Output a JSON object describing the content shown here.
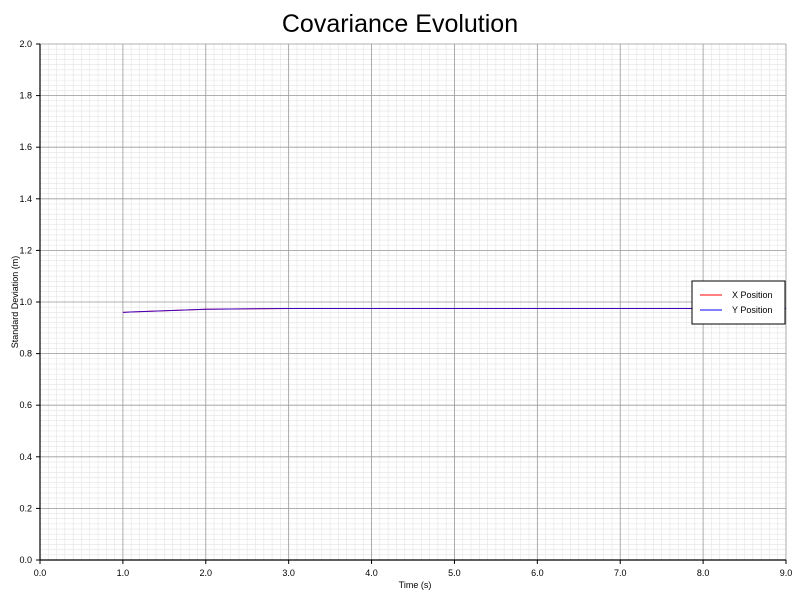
{
  "chart_data": {
    "type": "line",
    "title": "Covariance Evolution",
    "xlabel": "Time (s)",
    "ylabel": "Standard Deviation (m)",
    "xlim": [
      0,
      9
    ],
    "ylim": [
      0,
      2
    ],
    "xticks": [
      "0.0",
      "1.0",
      "2.0",
      "3.0",
      "4.0",
      "5.0",
      "6.0",
      "7.0",
      "8.0",
      "9.0"
    ],
    "yticks": [
      "0.0",
      "0.2",
      "0.4",
      "0.6",
      "0.8",
      "1.0",
      "1.2",
      "1.4",
      "1.6",
      "1.8",
      "2.0"
    ],
    "grid": true,
    "legend_position": "right",
    "series": [
      {
        "name": "X Position",
        "color": "#ff0000",
        "x": [
          1,
          2,
          3,
          4,
          5,
          6,
          7,
          8,
          9
        ],
        "y": [
          0.96,
          0.972,
          0.975,
          0.975,
          0.975,
          0.975,
          0.975,
          0.975,
          0.975
        ]
      },
      {
        "name": "Y Position",
        "color": "#0000ff",
        "x": [
          1,
          2,
          3,
          4,
          5,
          6,
          7,
          8,
          9
        ],
        "y": [
          0.96,
          0.972,
          0.975,
          0.975,
          0.975,
          0.975,
          0.975,
          0.975,
          0.975
        ]
      }
    ]
  }
}
